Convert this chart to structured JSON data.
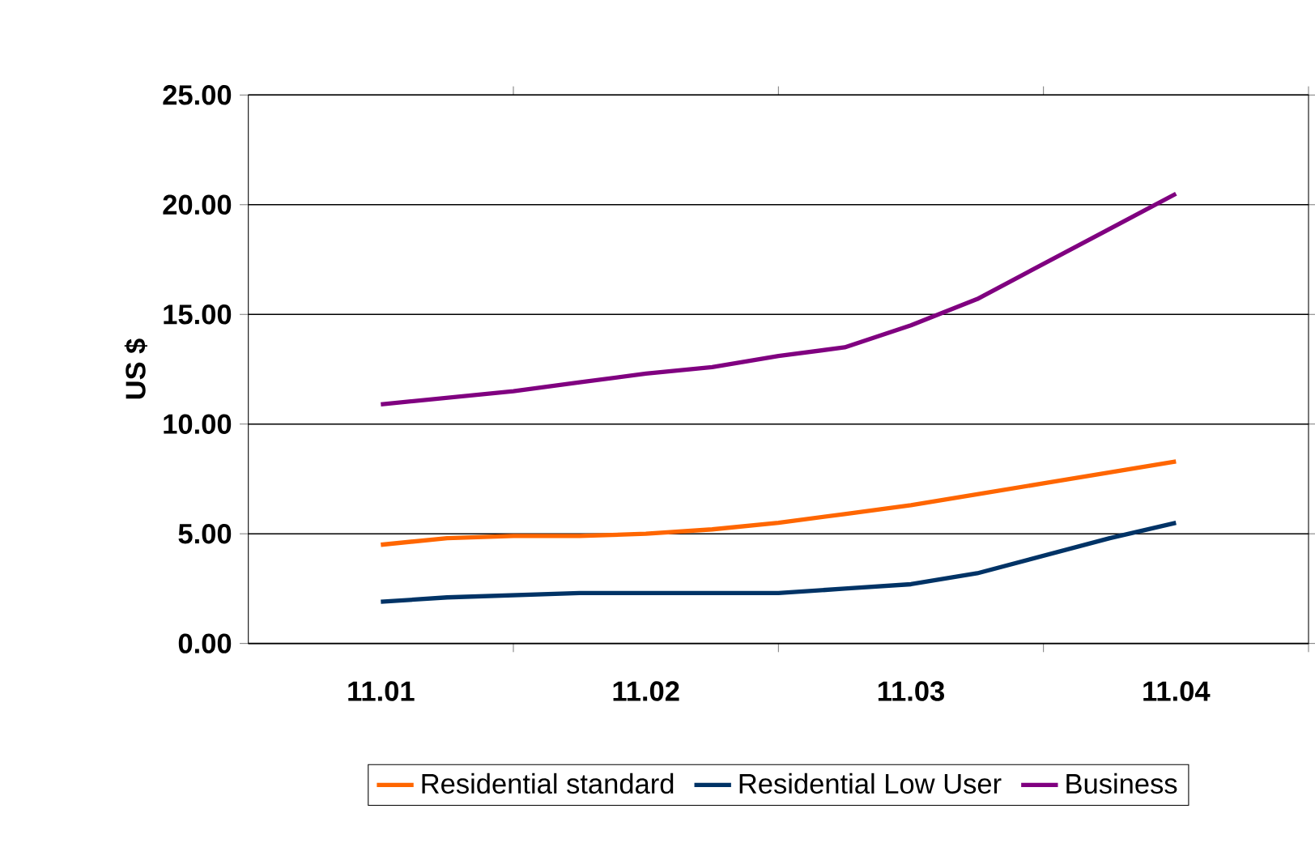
{
  "chart_data": {
    "type": "line",
    "ylabel": "US $",
    "xticks": [
      11.01,
      11.02,
      11.03,
      11.04,
      {
        "value": 11.015,
        "label": null
      },
      {
        "value": 11.025,
        "label": null
      },
      {
        "value": 11.035,
        "label": null
      },
      {
        "value": 11.045,
        "label": null
      }
    ],
    "xlim": [
      11.005,
      11.045
    ],
    "ylim": [
      0,
      25
    ],
    "yticks": [
      {
        "value": 0,
        "label": "0.00"
      },
      {
        "value": 5,
        "label": "5.00"
      },
      {
        "value": 10,
        "label": "10.00"
      },
      {
        "value": 15,
        "label": "15.00"
      },
      {
        "value": 20,
        "label": "20.00"
      },
      {
        "value": 25,
        "label": "25.00"
      }
    ],
    "grid": "y",
    "legend": "bottom",
    "marker": "none",
    "line_style": "solid",
    "series": [
      {
        "name": "Residential standard",
        "color": "#ff6600",
        "x": [
          11.01,
          11.0125,
          11.015,
          11.0175,
          11.02,
          11.0225,
          11.025,
          11.0275,
          11.03,
          11.0325,
          11.035,
          11.0375,
          11.04
        ],
        "values": [
          4.5,
          4.8,
          4.9,
          4.9,
          5.0,
          5.2,
          5.5,
          5.9,
          6.3,
          6.8,
          7.3,
          7.8,
          8.3
        ]
      },
      {
        "name": "Residential Low User",
        "color": "#003366",
        "x": [
          11.01,
          11.0125,
          11.015,
          11.0175,
          11.02,
          11.0225,
          11.025,
          11.0275,
          11.03,
          11.0325,
          11.035,
          11.0375,
          11.04
        ],
        "values": [
          1.9,
          2.1,
          2.2,
          2.3,
          2.3,
          2.3,
          2.3,
          2.5,
          2.7,
          3.2,
          4.0,
          4.8,
          5.5
        ]
      },
      {
        "name": "Business",
        "color": "#800080",
        "x": [
          11.01,
          11.0125,
          11.015,
          11.0175,
          11.02,
          11.0225,
          11.025,
          11.0275,
          11.03,
          11.0325,
          11.035,
          11.0375,
          11.04
        ],
        "values": [
          10.9,
          11.2,
          11.5,
          11.9,
          12.3,
          12.6,
          13.1,
          13.5,
          14.5,
          15.7,
          17.3,
          18.9,
          20.5
        ]
      }
    ]
  }
}
